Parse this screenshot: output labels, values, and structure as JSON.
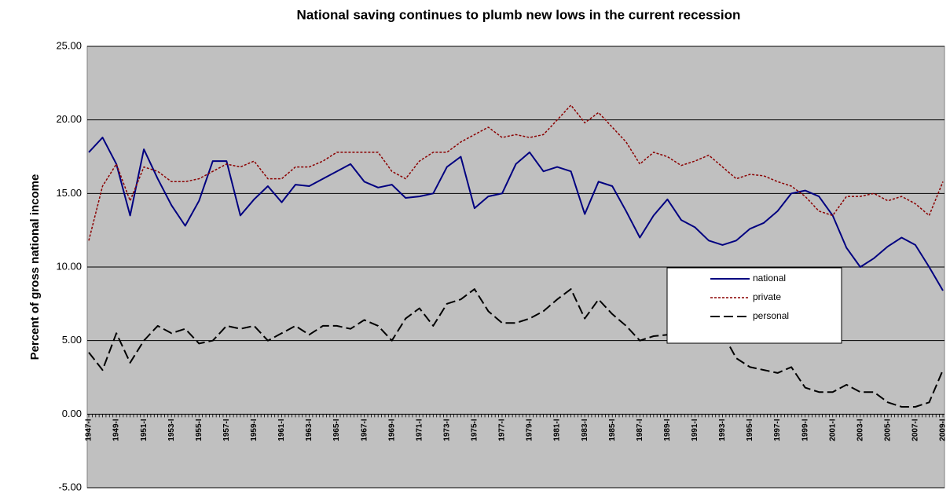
{
  "chart_data": {
    "type": "line",
    "title": "National saving continues to plumb new lows in the current recession",
    "y_label": "Percent of gross national income",
    "categories": [
      "1947-I",
      null,
      "1949-I",
      null,
      "1951-I",
      null,
      "1953-I",
      null,
      "1955-I",
      null,
      "1957-I",
      null,
      "1959-I",
      null,
      "1961-I",
      null,
      "1963-I",
      null,
      "1965-I",
      null,
      "1967-I",
      null,
      "1969-I",
      null,
      "1971-I",
      null,
      "1973-I",
      null,
      "1975-I",
      null,
      "1977-I",
      null,
      "1979-I",
      null,
      "1981-I",
      null,
      "1983-I",
      null,
      "1985-I",
      null,
      "1987-I",
      null,
      "1989-I",
      null,
      "1991-I",
      null,
      "1993-I",
      null,
      "1995-I",
      null,
      "1997-I",
      null,
      "1999-I",
      null,
      "2001-I",
      null,
      "2003-I",
      null,
      "2005-I",
      null,
      "2007-I",
      null,
      "2009-I"
    ],
    "series": [
      {
        "name": "national",
        "color": "#000080",
        "values": [
          17.8,
          18.8,
          17.0,
          13.5,
          18.0,
          16.0,
          14.2,
          12.8,
          14.5,
          17.2,
          17.2,
          13.5,
          14.6,
          15.5,
          14.4,
          15.6,
          15.5,
          16.0,
          16.5,
          17.0,
          15.8,
          15.4,
          15.6,
          14.7,
          14.8,
          15.0,
          16.8,
          17.5,
          14.0,
          14.8,
          15.0,
          17.0,
          17.8,
          16.5,
          16.8,
          16.5,
          13.6,
          15.8,
          15.5,
          13.8,
          12.0,
          13.5,
          14.6,
          13.2,
          12.7,
          11.8,
          11.5,
          11.8,
          12.6,
          13.0,
          13.8,
          15.0,
          15.2,
          14.8,
          13.5,
          11.3,
          10.0,
          10.6,
          11.4,
          12.0,
          11.5,
          10.0,
          8.4
        ]
      },
      {
        "name": "private",
        "color": "#8b0000",
        "values": [
          11.8,
          15.5,
          17.0,
          14.5,
          16.8,
          16.5,
          15.8,
          15.8,
          16.0,
          16.5,
          17.0,
          16.8,
          17.2,
          16.0,
          16.0,
          16.8,
          16.8,
          17.2,
          17.8,
          17.8,
          17.8,
          17.8,
          16.5,
          16.0,
          17.2,
          17.8,
          17.8,
          18.5,
          19.0,
          19.5,
          18.8,
          19.0,
          18.8,
          19.0,
          20.0,
          21.0,
          19.8,
          20.5,
          19.5,
          18.5,
          17.0,
          17.8,
          17.5,
          16.9,
          17.2,
          17.6,
          16.8,
          16.0,
          16.3,
          16.2,
          15.8,
          15.5,
          14.8,
          13.8,
          13.5,
          14.8,
          14.8,
          15.0,
          14.5,
          14.8,
          14.3,
          13.5,
          15.8
        ]
      },
      {
        "name": "personal",
        "color": "#000000",
        "values": [
          4.2,
          3.0,
          5.5,
          3.5,
          5.0,
          6.0,
          5.5,
          5.8,
          4.8,
          5.0,
          6.0,
          5.8,
          6.0,
          5.0,
          5.5,
          6.0,
          5.4,
          6.0,
          6.0,
          5.8,
          6.4,
          6.0,
          5.0,
          6.5,
          7.2,
          6.0,
          7.5,
          7.8,
          8.5,
          7.0,
          6.2,
          6.2,
          6.5,
          7.0,
          7.8,
          8.5,
          6.5,
          7.8,
          6.8,
          6.0,
          5.0,
          5.3,
          5.4,
          5.0,
          5.2,
          5.8,
          5.5,
          3.8,
          3.2,
          3.0,
          2.8,
          3.2,
          1.8,
          1.5,
          1.5,
          2.0,
          1.5,
          1.5,
          0.8,
          0.5,
          0.5,
          0.8,
          3.0
        ]
      }
    ],
    "ylim": [
      -5,
      25
    ],
    "yticks": [
      {
        "value": -5,
        "label": "-5.00"
      },
      {
        "value": 0,
        "label": "0.00"
      },
      {
        "value": 5,
        "label": "5.00"
      },
      {
        "value": 10,
        "label": "10.00"
      },
      {
        "value": 15,
        "label": "15.00"
      },
      {
        "value": 20,
        "label": "20.00"
      },
      {
        "value": 25,
        "label": "25.00"
      }
    ],
    "grid": true
  }
}
